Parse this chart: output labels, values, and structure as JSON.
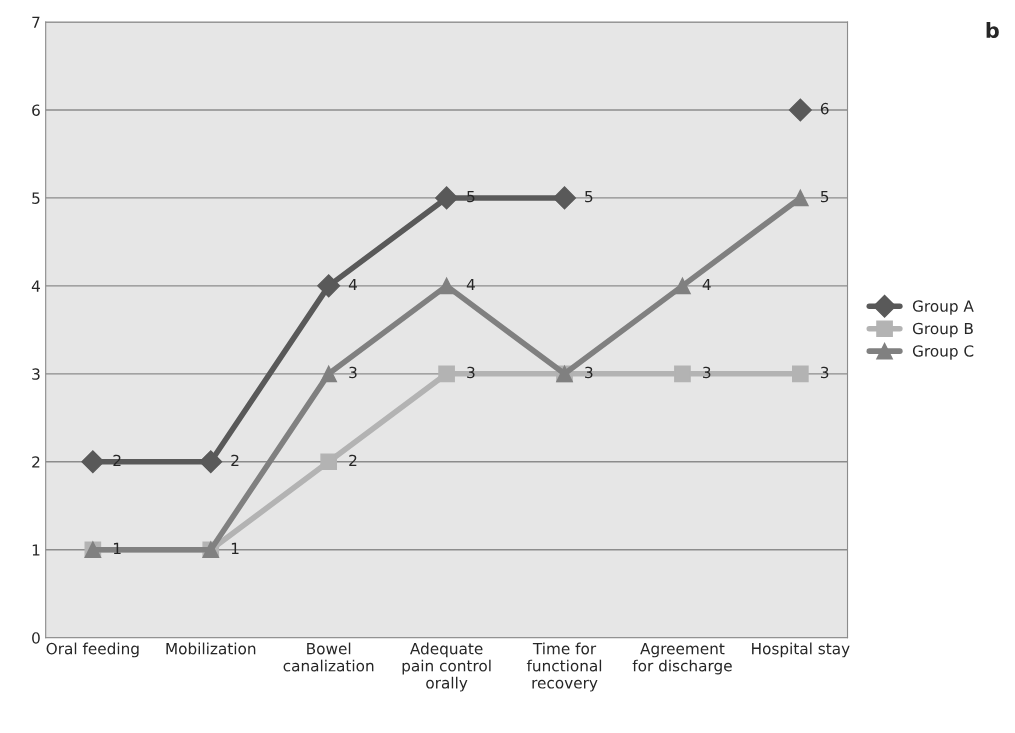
{
  "chart_data": {
    "type": "line",
    "categories": [
      "Oral feeding",
      "Mobilization",
      "Bowel\ncanalization",
      "Adequate\npain control\norally",
      "Time for\nfunctional\nrecovery",
      "Agreement\nfor discharge",
      "Hospital stay"
    ],
    "series": [
      {
        "name": "Group A",
        "color": "#595959",
        "marker": "diamond",
        "values": [
          2,
          2,
          4,
          5,
          5,
          null,
          6
        ],
        "value_labels": [
          "2",
          "2",
          "4",
          "5",
          "5",
          null,
          "6"
        ]
      },
      {
        "name": "Group B",
        "color": "#b3b3b3",
        "marker": "square",
        "values": [
          1,
          1,
          2,
          3,
          3,
          3,
          3
        ],
        "value_labels": [
          "1",
          "1",
          "2",
          "3",
          "3",
          "3",
          "3"
        ]
      },
      {
        "name": "Group C",
        "color": "#808080",
        "marker": "triangle",
        "values": [
          1,
          1,
          3,
          4,
          3,
          4,
          5
        ],
        "value_labels": [
          null,
          null,
          "3",
          "4",
          null,
          "4",
          "5"
        ]
      }
    ],
    "ylim": [
      0,
      7
    ],
    "yticks": [
      0,
      1,
      2,
      3,
      4,
      5,
      6,
      7
    ],
    "grid": "y",
    "legend": "right",
    "annotations": [
      "b"
    ]
  }
}
